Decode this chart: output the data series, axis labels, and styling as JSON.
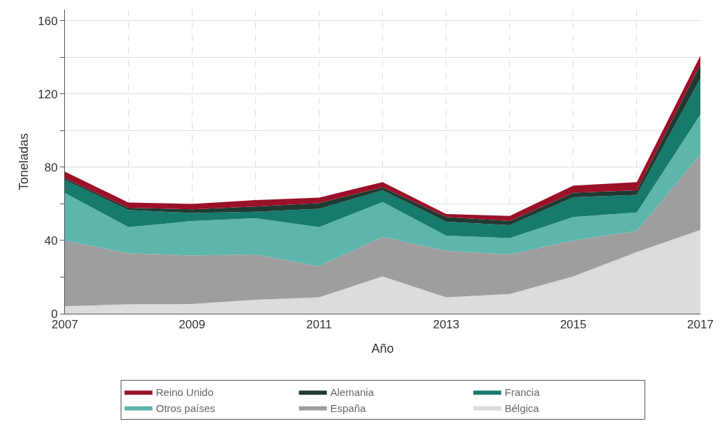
{
  "chart_data": {
    "type": "area",
    "stacked": true,
    "xlabel": "Año",
    "ylabel": "Toneladas",
    "x": [
      2007,
      2008,
      2009,
      2010,
      2011,
      2012,
      2013,
      2014,
      2015,
      2016,
      2017
    ],
    "xlim": [
      2007,
      2017
    ],
    "xticks": [
      2007,
      {
        "value": 2008,
        "label": null
      },
      2009,
      {
        "value": 2010,
        "label": null
      },
      2011,
      {
        "value": 2012,
        "label": null
      },
      2013,
      {
        "value": 2014,
        "label": null
      },
      2015,
      {
        "value": 2016,
        "label": null
      },
      2017
    ],
    "ylim": [
      0,
      166
    ],
    "yticks": [
      0,
      {
        "value": 20,
        "label": null
      },
      40,
      {
        "value": 60,
        "label": null
      },
      80,
      {
        "value": 100,
        "label": null
      },
      120,
      {
        "value": 140,
        "label": null
      },
      160
    ],
    "grid": true,
    "legend": "bottom",
    "series": [
      {
        "name": "Bélgica",
        "color": "#dcdcdc",
        "values": [
          4.1,
          5.1,
          5.3,
          7.6,
          8.9,
          20.4,
          8.9,
          10.8,
          20.4,
          33.7,
          45.8
        ]
      },
      {
        "name": "España",
        "color": "#9e9e9e",
        "values": [
          35.9,
          27.9,
          26.5,
          24.8,
          17.1,
          21.6,
          25.5,
          21.6,
          19.6,
          11.5,
          41.2
        ]
      },
      {
        "name": "Otros países",
        "color": "#5eb5ab",
        "values": [
          26,
          14.3,
          18.8,
          19.8,
          21.3,
          19,
          8.2,
          8.9,
          12.8,
          10.1,
          21.8
        ]
      },
      {
        "name": "Francia",
        "color": "#167a6c",
        "values": [
          7,
          9.3,
          4.4,
          3.5,
          10,
          6.4,
          7.7,
          7.1,
          10.8,
          9.6,
          19.7
        ]
      },
      {
        "name": "Alemania",
        "color": "#1f3a33",
        "values": [
          1,
          1.3,
          2,
          2.8,
          3.1,
          1.6,
          2.5,
          2.2,
          2.5,
          2.5,
          7.5
        ]
      },
      {
        "name": "Reino Unido",
        "color": "#9b1128",
        "values": [
          3.6,
          2.8,
          3,
          3.6,
          3,
          2.9,
          1.6,
          2.8,
          3.9,
          4.5,
          5
        ]
      }
    ]
  }
}
